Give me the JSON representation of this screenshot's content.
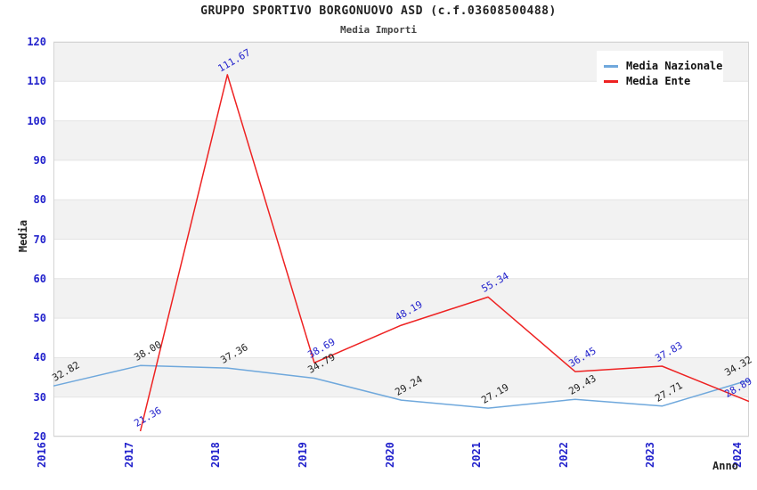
{
  "header": {
    "title": "GRUPPO SPORTIVO BORGONUOVO ASD (c.f.03608500488)",
    "subtitle": "Media Importi"
  },
  "legend": {
    "items": [
      {
        "label": "Media Nazionale",
        "color": "#6fa8dc"
      },
      {
        "label": "Media Ente",
        "color": "#ee2222"
      }
    ]
  },
  "chart_data": {
    "type": "line",
    "title": "GRUPPO SPORTIVO BORGONUOVO ASD (c.f.03608500488)",
    "subtitle": "Media Importi",
    "xlabel": "Anno",
    "ylabel": "Media",
    "x": [
      "2016",
      "2017",
      "2018",
      "2019",
      "2020",
      "2021",
      "2022",
      "2023",
      "2024"
    ],
    "series": [
      {
        "name": "Media Nazionale",
        "color": "#6fa8dc",
        "label_color": "#222222",
        "values": [
          32.82,
          38.0,
          37.36,
          34.79,
          29.24,
          27.19,
          29.43,
          27.71,
          34.32
        ]
      },
      {
        "name": "Media Ente",
        "color": "#ee2222",
        "label_color": "#2222cc",
        "values": [
          null,
          21.36,
          111.67,
          38.69,
          48.19,
          55.34,
          36.45,
          37.83,
          28.89
        ]
      }
    ],
    "ylim": [
      20,
      120
    ],
    "ytick_step": 10,
    "tick_color": "#2222cc",
    "band_color": "#f2f2f2",
    "grid_color": "#e4e4e4",
    "border_color": "#d4d4d4",
    "grid": "horizontal-bands",
    "legend_position": "top-right"
  }
}
